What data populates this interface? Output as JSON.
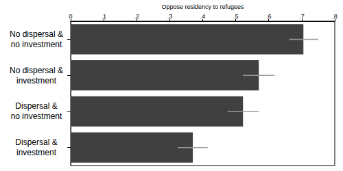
{
  "chart_data": {
    "type": "bar",
    "orientation": "horizontal",
    "x_label": "Oppose residency to refugees",
    "categories": [
      "No dispersal &\nno investment",
      "No dispersal &\ninvestment",
      "Dispersal &\nno investment",
      "Dispersal &\ninvestment"
    ],
    "values": [
      0.705,
      0.57,
      0.522,
      0.37
    ],
    "ci": [
      [
        0.662,
        0.75
      ],
      [
        0.522,
        0.618
      ],
      [
        0.475,
        0.57
      ],
      [
        0.325,
        0.415
      ]
    ],
    "color": "#404040",
    "xlim": [
      0,
      0.8
    ],
    "xticks": [
      0,
      {
        "value": 0.1,
        "label": ".1"
      },
      {
        "value": 0.2,
        "label": ".2"
      },
      {
        "value": 0.3,
        "label": ".3"
      },
      {
        "value": 0.4,
        "label": ".4"
      },
      {
        "value": 0.5,
        "label": ".5"
      },
      {
        "value": 0.6,
        "label": ".6"
      },
      {
        "value": 0.7,
        "label": ".7"
      },
      {
        "value": 0.8,
        "label": ".8"
      }
    ],
    "grid": false
  }
}
